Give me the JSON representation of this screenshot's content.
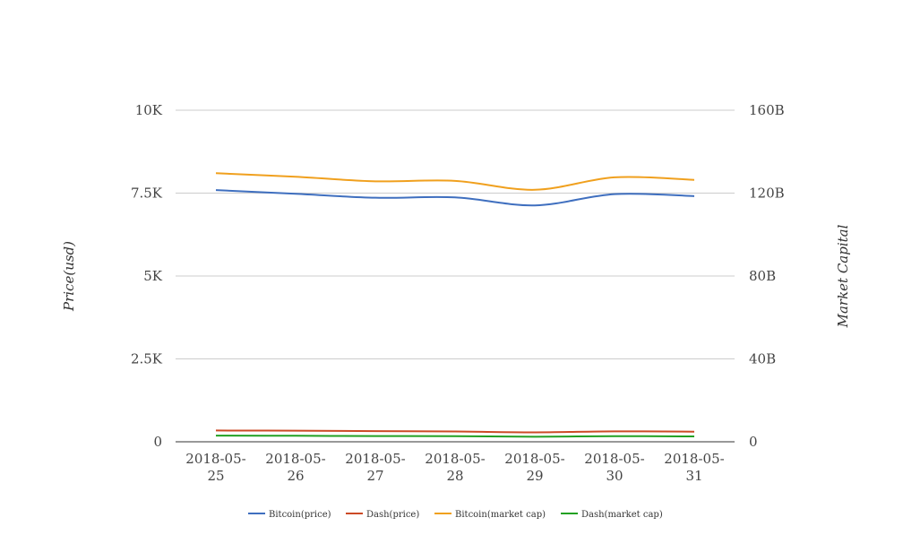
{
  "chart_data": {
    "type": "line",
    "categories": [
      [
        "2018-05-",
        "25"
      ],
      [
        "2018-05-",
        "26"
      ],
      [
        "2018-05-",
        "27"
      ],
      [
        "2018-05-",
        "28"
      ],
      [
        "2018-05-",
        "29"
      ],
      [
        "2018-05-",
        "30"
      ],
      [
        "2018-05-",
        "31"
      ]
    ],
    "ylabel": "Price(usd)",
    "y2label": "Market Capital",
    "ylim": [
      0,
      10000
    ],
    "y2lim": [
      0,
      160000000000
    ],
    "yticks": [
      "0",
      "2.5K",
      "5K",
      "7.5K",
      "10K"
    ],
    "y2ticks": [
      "0",
      "40B",
      "80B",
      "120B",
      "160B"
    ],
    "grid": true,
    "legend_position": "bottom",
    "series": [
      {
        "name": "Bitcoin(price)",
        "axis": "left",
        "color": "#3f6fbf",
        "values": [
          7590,
          7480,
          7360,
          7370,
          7130,
          7470,
          7410
        ]
      },
      {
        "name": "Dash(price)",
        "axis": "left",
        "color": "#cc4a26",
        "values": [
          340,
          335,
          320,
          310,
          285,
          315,
          305
        ]
      },
      {
        "name": "Bitcoin(market cap)",
        "axis": "right",
        "color": "#f0a01e",
        "values": [
          129600000000,
          127900000000,
          125700000000,
          125900000000,
          121600000000,
          127600000000,
          126400000000
        ]
      },
      {
        "name": "Dash(market cap)",
        "axis": "right",
        "color": "#22a022",
        "values": [
          3000000000,
          2900000000,
          2750000000,
          2700000000,
          2450000000,
          2700000000,
          2600000000
        ]
      }
    ]
  }
}
